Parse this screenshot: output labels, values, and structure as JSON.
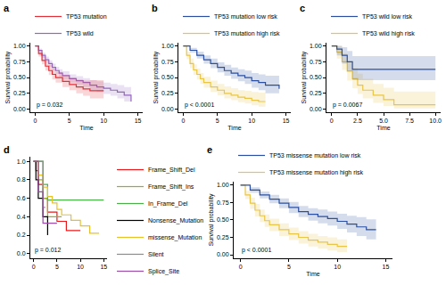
{
  "chart_data": [
    {
      "type": "line",
      "title": "a",
      "xlabel": "Time",
      "ylabel": "Survival probability",
      "xlim": [
        -0.7,
        15.7
      ],
      "xticks": [
        0,
        5,
        10,
        15
      ],
      "ylim": [
        -0.05,
        1.05
      ],
      "yticks": [
        {
          "value": 0,
          "label": "0.00"
        },
        0.25,
        {
          "value": 0.5,
          "label": "0.50"
        },
        0.75,
        {
          "value": 1,
          "label": "1.00"
        }
      ],
      "grid": false,
      "legend": "top",
      "line_style": "step",
      "annotations": [
        "p = 0.032"
      ],
      "series": [
        {
          "name": "TP53 wild",
          "color": "#9467bd",
          "x": [
            0,
            0.5,
            1,
            1.5,
            2,
            2.5,
            3,
            3.5,
            4,
            5,
            6,
            7,
            8,
            9,
            10,
            11,
            12,
            13,
            14
          ],
          "values": [
            1,
            0.93,
            0.85,
            0.78,
            0.72,
            0.66,
            0.61,
            0.57,
            0.53,
            0.48,
            0.45,
            0.42,
            0.38,
            0.35,
            0.33,
            0.3,
            0.27,
            0.22,
            0.12
          ],
          "lower": [
            1,
            0.9,
            0.81,
            0.74,
            0.67,
            0.61,
            0.56,
            0.51,
            0.47,
            0.42,
            0.38,
            0.35,
            0.3,
            0.27,
            0.24,
            0.21,
            0.17,
            0.12,
            0.04
          ],
          "upper": [
            1,
            0.96,
            0.89,
            0.83,
            0.77,
            0.72,
            0.67,
            0.63,
            0.6,
            0.55,
            0.52,
            0.49,
            0.46,
            0.44,
            0.42,
            0.4,
            0.38,
            0.35,
            0.3
          ]
        },
        {
          "name": "TP53 mutation",
          "color": "#e0303a",
          "x": [
            0,
            0.5,
            1,
            1.5,
            2,
            2.5,
            3,
            4,
            5,
            6,
            7,
            8,
            10
          ],
          "values": [
            1,
            0.88,
            0.77,
            0.68,
            0.61,
            0.55,
            0.5,
            0.44,
            0.39,
            0.35,
            0.32,
            0.29,
            0.29
          ],
          "lower": [
            1,
            0.83,
            0.71,
            0.61,
            0.54,
            0.47,
            0.42,
            0.35,
            0.3,
            0.25,
            0.21,
            0.17,
            0.16
          ],
          "upper": [
            1,
            0.93,
            0.84,
            0.76,
            0.7,
            0.64,
            0.59,
            0.54,
            0.5,
            0.47,
            0.45,
            0.46,
            0.52
          ]
        }
      ]
    },
    {
      "type": "line",
      "title": "b",
      "xlabel": "Time",
      "ylabel": "Survival probability",
      "xlim": [
        -0.7,
        15.7
      ],
      "xticks": [
        0,
        5,
        10,
        15
      ],
      "ylim": [
        -0.05,
        1.05
      ],
      "yticks": [
        {
          "value": 0,
          "label": "0.00"
        },
        0.25,
        {
          "value": 0.5,
          "label": "0.50"
        },
        0.75,
        {
          "value": 1,
          "label": "1.00"
        }
      ],
      "grid": false,
      "legend": "top",
      "line_style": "step",
      "annotations": [
        "p < 0.0001"
      ],
      "series": [
        {
          "name": "TP53 mutation high risk",
          "color": "#e8c547",
          "x": [
            0,
            0.5,
            1,
            1.5,
            2,
            2.5,
            3,
            4,
            5,
            6,
            7,
            8,
            9,
            10,
            11,
            12
          ],
          "values": [
            1,
            0.85,
            0.72,
            0.62,
            0.55,
            0.48,
            0.42,
            0.35,
            0.3,
            0.25,
            0.22,
            0.19,
            0.17,
            0.14,
            0.12,
            0.12
          ],
          "lower": [
            1,
            0.79,
            0.65,
            0.54,
            0.47,
            0.4,
            0.34,
            0.27,
            0.22,
            0.17,
            0.14,
            0.11,
            0.09,
            0.06,
            0.04,
            0.04
          ],
          "upper": [
            1,
            0.91,
            0.8,
            0.71,
            0.64,
            0.57,
            0.51,
            0.45,
            0.4,
            0.36,
            0.33,
            0.3,
            0.29,
            0.27,
            0.26,
            0.26
          ]
        },
        {
          "name": "TP53 mutation low risk",
          "color": "#2b4f9e",
          "x": [
            0,
            1,
            2,
            3,
            4,
            5,
            6,
            7,
            8,
            9,
            10,
            11,
            12,
            13,
            14
          ],
          "values": [
            1,
            0.93,
            0.85,
            0.78,
            0.72,
            0.66,
            0.61,
            0.57,
            0.53,
            0.5,
            0.45,
            0.42,
            0.38,
            0.38,
            0.32
          ],
          "lower": [
            1,
            0.89,
            0.8,
            0.72,
            0.65,
            0.58,
            0.53,
            0.48,
            0.44,
            0.4,
            0.34,
            0.3,
            0.25,
            0.25,
            0.17
          ],
          "upper": [
            1,
            0.97,
            0.91,
            0.85,
            0.8,
            0.74,
            0.7,
            0.66,
            0.63,
            0.61,
            0.57,
            0.55,
            0.53,
            0.53,
            0.52
          ]
        }
      ]
    },
    {
      "type": "line",
      "title": "c",
      "xlabel": "Time",
      "ylabel": "Survival probability",
      "xlim": [
        -0.5,
        10.5
      ],
      "xticks": [
        0,
        2.5,
        {
          "value": 5,
          "label": "5.0"
        },
        7.5,
        {
          "value": 10,
          "label": "10.0"
        }
      ],
      "ylim": [
        -0.05,
        1.05
      ],
      "yticks": [
        {
          "value": 0,
          "label": "0.00"
        },
        0.25,
        {
          "value": 0.5,
          "label": "0.50"
        },
        0.75,
        {
          "value": 1,
          "label": "1.00"
        }
      ],
      "grid": false,
      "legend": "top",
      "line_style": "step",
      "annotations": [
        "p = 0.0067"
      ],
      "series": [
        {
          "name": "TP53 wild high risk",
          "color": "#e8c547",
          "x": [
            0,
            0.5,
            1,
            1.5,
            2,
            2.5,
            3,
            4,
            5,
            6,
            10
          ],
          "values": [
            1,
            0.9,
            0.75,
            0.6,
            0.48,
            0.38,
            0.3,
            0.22,
            0.15,
            0.07,
            0.07
          ],
          "lower": [
            1,
            0.8,
            0.62,
            0.45,
            0.33,
            0.24,
            0.17,
            0.1,
            0.05,
            0.01,
            0.01
          ],
          "upper": [
            1,
            1,
            0.88,
            0.76,
            0.65,
            0.56,
            0.48,
            0.4,
            0.34,
            0.28,
            0.28
          ]
        },
        {
          "name": "TP53 wild low risk",
          "color": "#2b4f9e",
          "x": [
            0,
            0.5,
            1,
            1.5,
            2,
            10
          ],
          "values": [
            1,
            0.95,
            0.85,
            0.75,
            0.63,
            0.63
          ],
          "lower": [
            1,
            0.85,
            0.72,
            0.6,
            0.46,
            0.46
          ],
          "upper": [
            1,
            1,
            0.98,
            0.92,
            0.84,
            0.84
          ]
        }
      ]
    },
    {
      "type": "line",
      "title": "d",
      "xlim": [
        -0.7,
        15.7
      ],
      "xticks": [
        0,
        5,
        10,
        15
      ],
      "ylim": [
        -0.05,
        1.05
      ],
      "yticks": [
        {
          "value": 0,
          "label": "0.0"
        },
        0.2,
        0.4,
        0.6,
        0.8,
        {
          "value": 1,
          "label": "1.0"
        }
      ],
      "grid": false,
      "legend": "right",
      "line_style": "step",
      "annotations": [
        "p = 0.012"
      ],
      "series": [
        {
          "name": "Frame_Shift_Del",
          "color": "#e41a1c",
          "x": [
            0,
            0.5,
            1,
            2,
            3,
            5,
            7,
            10
          ],
          "values": [
            1,
            0.9,
            0.75,
            0.6,
            0.45,
            0.35,
            0.25,
            0.25
          ]
        },
        {
          "name": "Frame_Shift_Ins",
          "color": "#9aae1c",
          "x": [
            0,
            1,
            2,
            3,
            6
          ],
          "values": [
            1,
            0.8,
            0.6,
            0.4,
            0.4
          ]
        },
        {
          "name": "In_Frame_Del",
          "color": "#4daf4a",
          "x": [
            0,
            2,
            3,
            15
          ],
          "values": [
            1,
            0.75,
            0.58,
            0.58
          ]
        },
        {
          "name": "Nonsense_Mutation",
          "color": "#000000",
          "x": [
            0,
            0.5,
            1,
            2,
            3
          ],
          "values": [
            1,
            0.8,
            0.6,
            0.4,
            0.2
          ]
        },
        {
          "name": "missense_Mutation",
          "color": "#e6c229",
          "x": [
            0,
            1,
            2,
            3,
            4,
            5,
            6,
            8,
            10,
            12,
            14
          ],
          "values": [
            1,
            0.85,
            0.72,
            0.62,
            0.55,
            0.48,
            0.42,
            0.36,
            0.3,
            0.22,
            0.22
          ]
        },
        {
          "name": "Silent",
          "color": "#8c8c8c",
          "x": [
            0,
            2,
            2.5
          ],
          "values": [
            1,
            0.5,
            0.5
          ]
        },
        {
          "name": "Splice_Site",
          "color": "#984ea3",
          "x": [
            0,
            1,
            2,
            5
          ],
          "values": [
            1,
            0.67,
            0.33,
            0.33
          ]
        }
      ]
    },
    {
      "type": "line",
      "title": "e",
      "xlabel": "Time",
      "ylabel": "Survival probability",
      "xlim": [
        -0.7,
        15.7
      ],
      "xticks": [
        0,
        5,
        10,
        15
      ],
      "ylim": [
        -0.05,
        1.05
      ],
      "yticks": [
        {
          "value": 0,
          "label": "0.00"
        },
        0.25,
        {
          "value": 0.5,
          "label": "0.50"
        },
        0.75,
        {
          "value": 1,
          "label": "1.00"
        }
      ],
      "grid": false,
      "legend": "top",
      "line_style": "step",
      "annotations": [
        "p < 0.0001"
      ],
      "series": [
        {
          "name": "TP53 missense mutation high risk",
          "color": "#e8c547",
          "x": [
            0,
            0.5,
            1,
            1.5,
            2,
            2.5,
            3,
            4,
            5,
            6,
            7,
            8,
            9,
            10,
            11
          ],
          "values": [
            1,
            0.86,
            0.74,
            0.64,
            0.56,
            0.49,
            0.43,
            0.36,
            0.3,
            0.25,
            0.21,
            0.18,
            0.15,
            0.12,
            0.12
          ],
          "lower": [
            1,
            0.8,
            0.66,
            0.55,
            0.47,
            0.4,
            0.34,
            0.27,
            0.21,
            0.16,
            0.12,
            0.09,
            0.06,
            0.04,
            0.04
          ],
          "upper": [
            1,
            0.92,
            0.82,
            0.73,
            0.65,
            0.58,
            0.52,
            0.45,
            0.39,
            0.34,
            0.3,
            0.27,
            0.25,
            0.22,
            0.22
          ]
        },
        {
          "name": "TP53 missense mutation low risk",
          "color": "#2b4f9e",
          "x": [
            0,
            1,
            2,
            3,
            4,
            5,
            6,
            7,
            8,
            9,
            10,
            11,
            12,
            13,
            14
          ],
          "values": [
            1,
            0.93,
            0.86,
            0.8,
            0.74,
            0.68,
            0.62,
            0.58,
            0.55,
            0.52,
            0.48,
            0.44,
            0.4,
            0.36,
            0.36
          ],
          "lower": [
            1,
            0.89,
            0.81,
            0.74,
            0.67,
            0.6,
            0.54,
            0.49,
            0.45,
            0.42,
            0.37,
            0.32,
            0.27,
            0.22,
            0.22
          ],
          "upper": [
            1,
            0.97,
            0.91,
            0.86,
            0.81,
            0.76,
            0.7,
            0.67,
            0.65,
            0.62,
            0.59,
            0.56,
            0.54,
            0.51,
            0.51
          ]
        }
      ]
    }
  ]
}
